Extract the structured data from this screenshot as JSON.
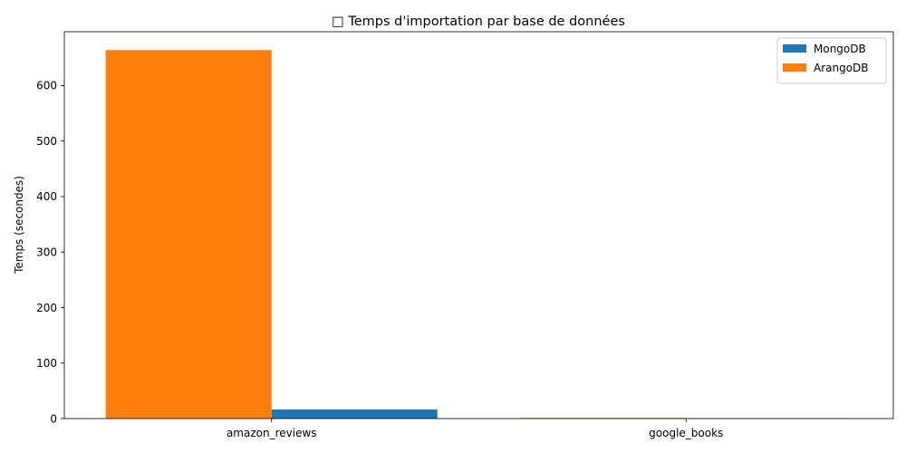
{
  "chart_data": {
    "type": "bar",
    "title": "□ Temps d'importation par base de données",
    "xlabel": "",
    "ylabel": "Temps (secondes)",
    "categories": [
      "amazon_reviews",
      "google_books"
    ],
    "series": [
      {
        "name": "MongoDB",
        "values": [
          16.5,
          0.7
        ],
        "color": "#1f77b4"
      },
      {
        "name": "ArangoDB",
        "values": [
          664,
          1.2
        ],
        "color": "#ff7f0e"
      }
    ],
    "draw_order": [
      "ArangoDB",
      "MongoDB"
    ],
    "yticks": [
      0,
      100,
      200,
      300,
      400,
      500,
      600
    ],
    "ylim": [
      0,
      697
    ],
    "grid": false,
    "legend_position": "top-right"
  }
}
